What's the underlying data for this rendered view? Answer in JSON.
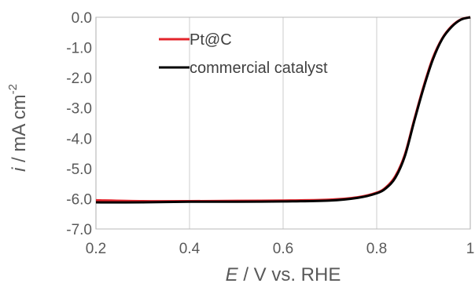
{
  "chart_data": {
    "type": "line",
    "xlabel": {
      "var": "E",
      "rest": " / V vs. RHE"
    },
    "ylabel": {
      "var": "i",
      "rest": " / mA cm",
      "sup": "-2"
    },
    "xlim": [
      0.2,
      1.0
    ],
    "ylim": [
      -7.0,
      0.0
    ],
    "x_ticks": [
      "0.2",
      "0.4",
      "0.6",
      "0.8",
      "1"
    ],
    "y_ticks": [
      "0.0",
      "-1.0",
      "-2.0",
      "-3.0",
      "-4.0",
      "-5.0",
      "-6.0",
      "-7.0"
    ],
    "grid": "vertical",
    "legend_position": "top-left",
    "series": [
      {
        "name": "Pt@C",
        "color": "#e3242b",
        "x": [
          0.2,
          0.3,
          0.4,
          0.5,
          0.6,
          0.7,
          0.76,
          0.8,
          0.82,
          0.84,
          0.86,
          0.88,
          0.9,
          0.92,
          0.94,
          0.96,
          0.98,
          1.0
        ],
        "y": [
          -6.05,
          -6.08,
          -6.08,
          -6.07,
          -6.06,
          -6.03,
          -5.95,
          -5.8,
          -5.62,
          -5.25,
          -4.55,
          -3.4,
          -2.3,
          -1.35,
          -0.7,
          -0.3,
          -0.07,
          0.0
        ]
      },
      {
        "name": "commercial catalyst",
        "color": "#000000",
        "x": [
          0.2,
          0.3,
          0.4,
          0.5,
          0.6,
          0.7,
          0.76,
          0.8,
          0.82,
          0.84,
          0.86,
          0.88,
          0.9,
          0.92,
          0.94,
          0.96,
          0.98,
          1.0
        ],
        "y": [
          -6.12,
          -6.12,
          -6.1,
          -6.1,
          -6.09,
          -6.06,
          -5.97,
          -5.82,
          -5.65,
          -5.3,
          -4.6,
          -3.45,
          -2.35,
          -1.4,
          -0.72,
          -0.32,
          -0.08,
          0.0
        ]
      }
    ]
  }
}
